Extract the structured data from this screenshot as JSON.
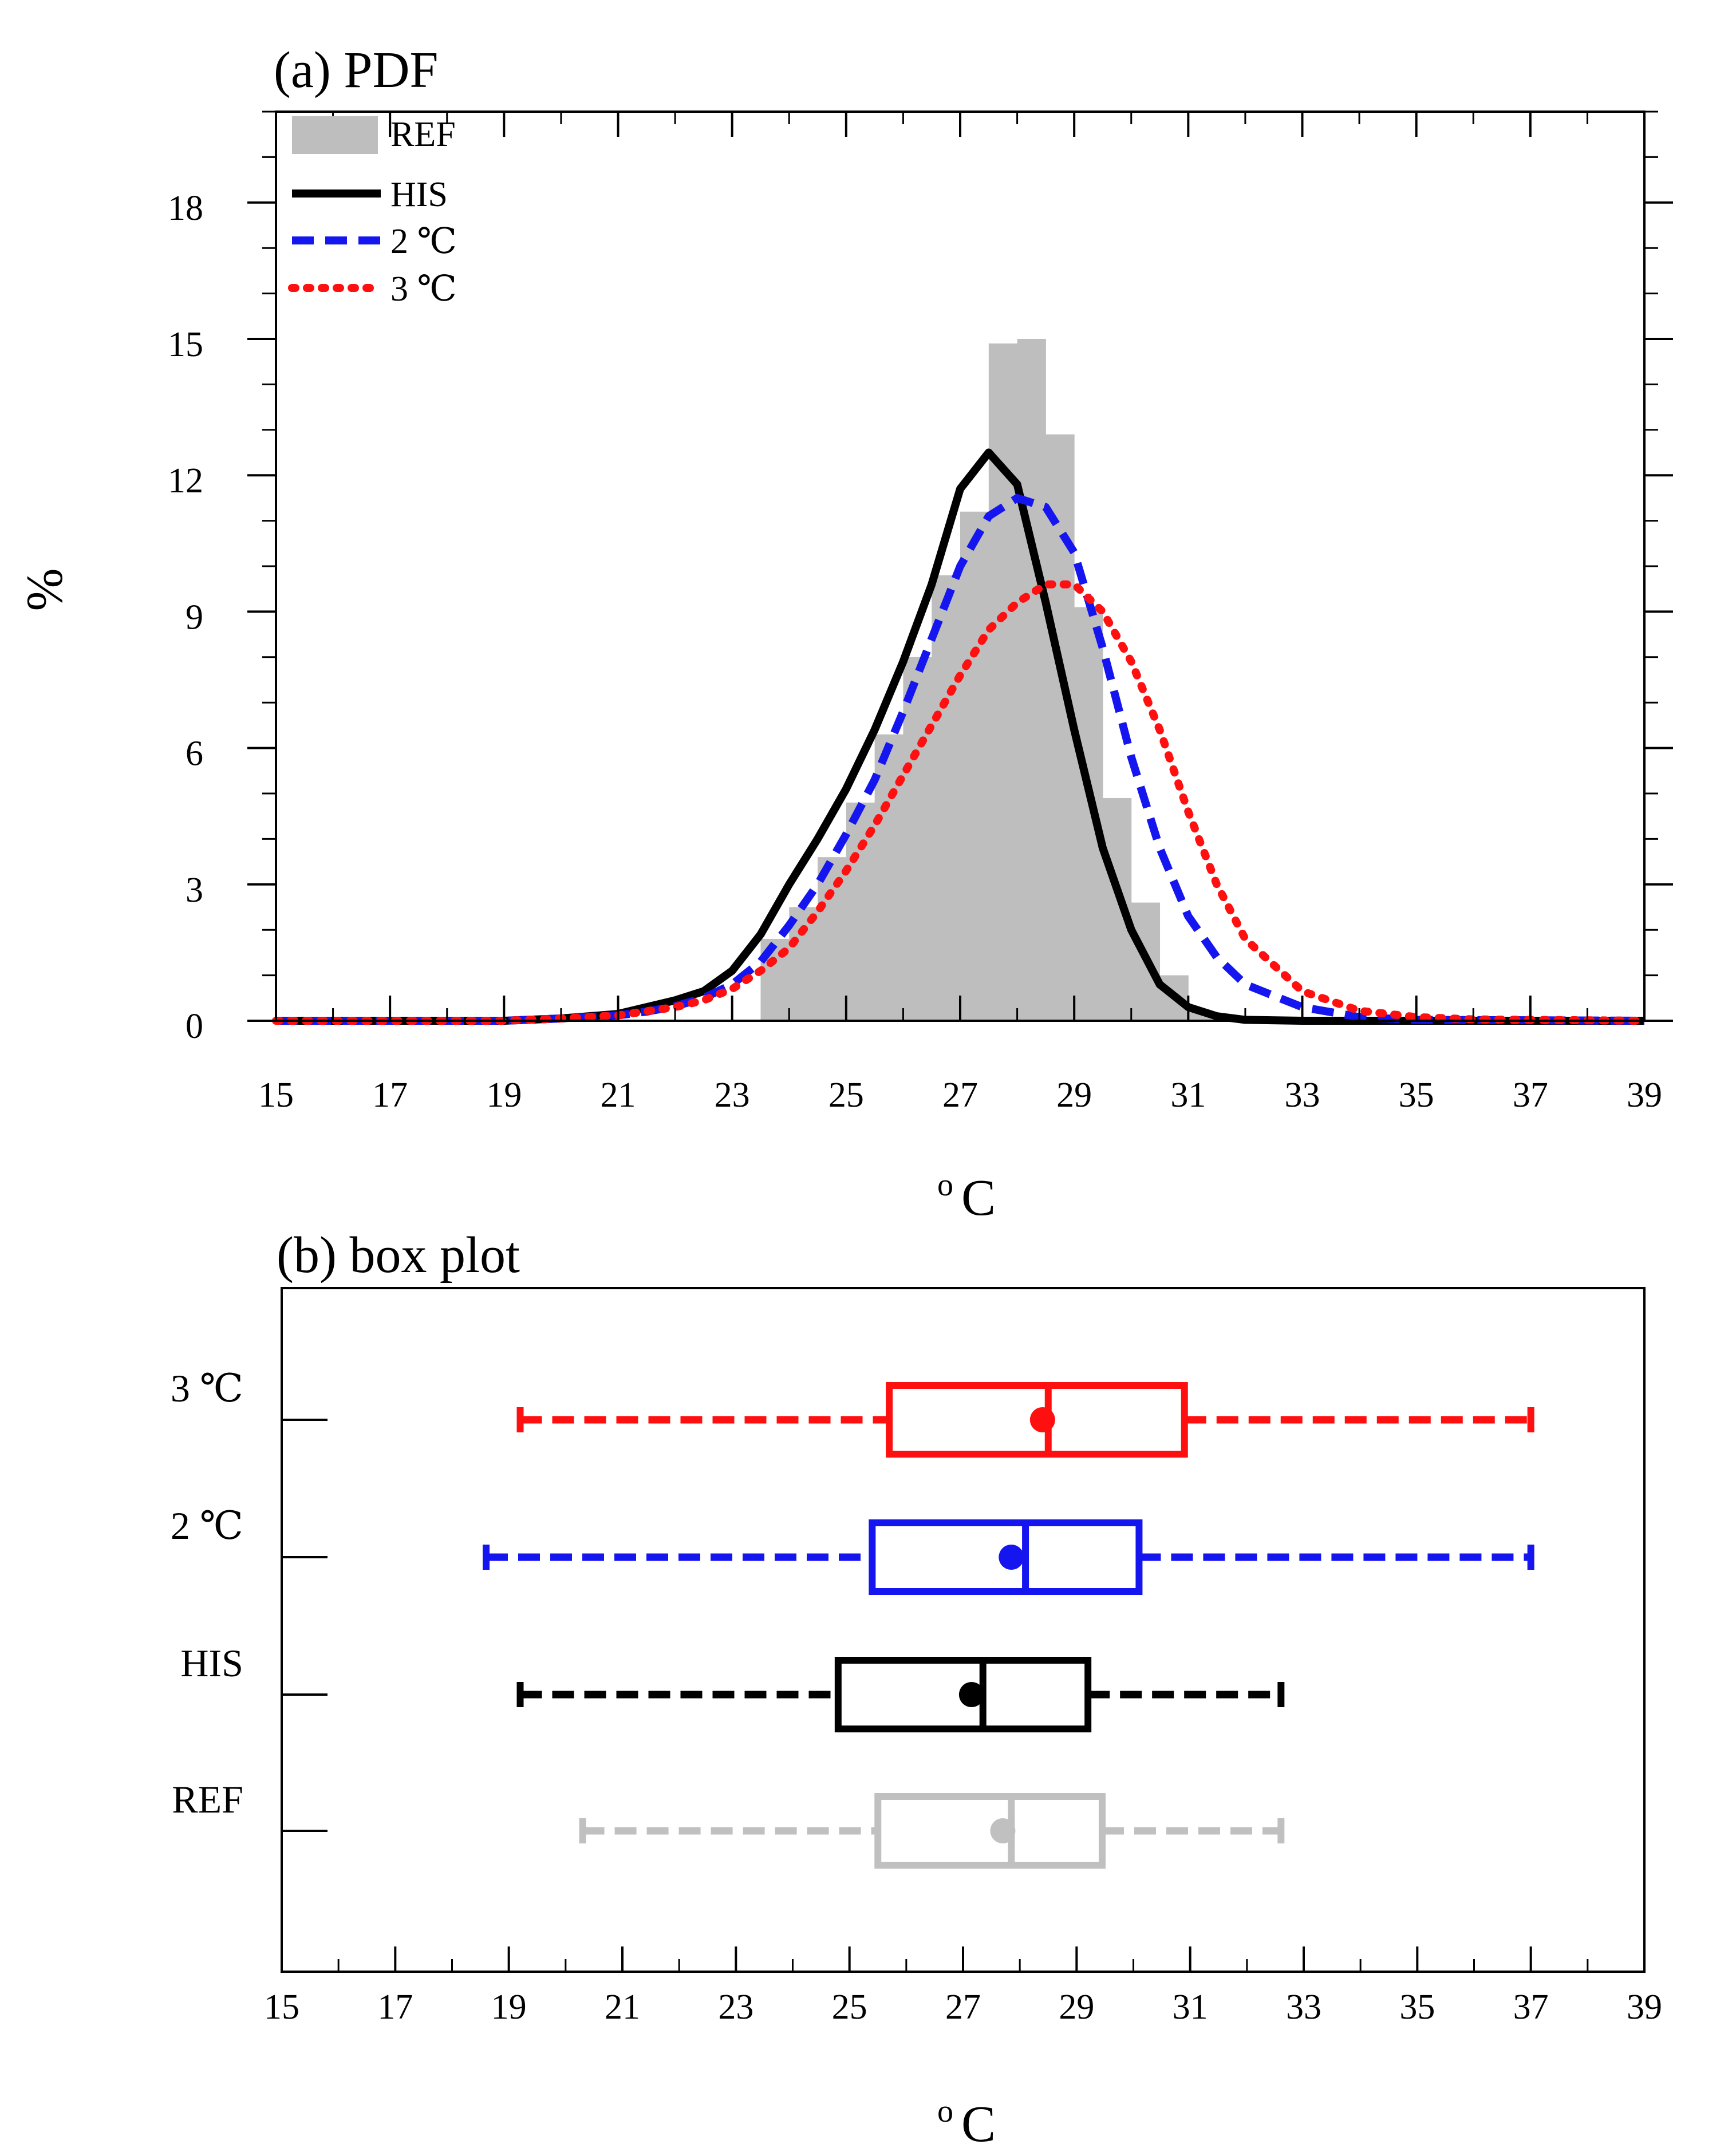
{
  "chart_data": [
    {
      "type": "histogram+line",
      "title": "(a) PDF",
      "xlabel": "° C",
      "xlabel_parts": [
        "o",
        "C"
      ],
      "ylabel": "%",
      "xlim": [
        15,
        39
      ],
      "ylim": [
        0,
        20
      ],
      "xticks": [
        "15",
        "17",
        "19",
        "21",
        "23",
        "25",
        "27",
        "29",
        "31",
        "33",
        "35",
        "37",
        "39"
      ],
      "yticks": [
        "0",
        "3",
        "6",
        "9",
        "12",
        "15",
        "18"
      ],
      "legend": [
        {
          "name": "REF",
          "style": "gray bars"
        },
        {
          "name": "HIS",
          "style": "black solid"
        },
        {
          "name": "2 ℃",
          "style": "blue dashed"
        },
        {
          "name": "3 ℃",
          "style": "red dotted"
        }
      ],
      "histogram": {
        "name": "REF",
        "bin_width": 0.5,
        "bin_starts": [
          23.5,
          24,
          24.5,
          25,
          25.5,
          26,
          26.5,
          27,
          27.5,
          28,
          28.5,
          29,
          29.5,
          30,
          30.5,
          31,
          31.5
        ],
        "values": [
          1.8,
          2.5,
          3.6,
          4.8,
          6.3,
          8.0,
          9.8,
          11.2,
          14.9,
          15.0,
          12.9,
          9.1,
          4.9,
          2.6,
          1.0,
          0.2,
          0.05
        ]
      },
      "series": [
        {
          "name": "HIS",
          "color": "#000000",
          "x": [
            15,
            17,
            19,
            20,
            21,
            21.5,
            22,
            22.5,
            23,
            23.5,
            24,
            24.5,
            25,
            25.5,
            26,
            26.5,
            27,
            27.5,
            28,
            28.5,
            29,
            29.5,
            30,
            30.5,
            31,
            31.5,
            32,
            33,
            35,
            39
          ],
          "y": [
            0,
            0,
            0,
            0.05,
            0.15,
            0.3,
            0.45,
            0.65,
            1.1,
            1.9,
            3.0,
            4.0,
            5.1,
            6.4,
            7.9,
            9.6,
            11.7,
            12.5,
            11.8,
            9.2,
            6.4,
            3.8,
            2.0,
            0.8,
            0.3,
            0.1,
            0.02,
            0,
            0,
            0
          ]
        },
        {
          "name": "2 ℃",
          "color": "#1515f0",
          "x": [
            15,
            17,
            19,
            20,
            21,
            21.5,
            22,
            22.5,
            23,
            23.5,
            24,
            24.5,
            25,
            25.5,
            26,
            26.5,
            27,
            27.5,
            28,
            28.5,
            29,
            29.5,
            30,
            30.5,
            31,
            31.5,
            32,
            33,
            34,
            35,
            39
          ],
          "y": [
            0,
            0,
            0,
            0.05,
            0.12,
            0.2,
            0.32,
            0.5,
            0.8,
            1.3,
            2.1,
            3.0,
            4.1,
            5.3,
            6.8,
            8.4,
            10.0,
            11.1,
            11.5,
            11.3,
            10.3,
            8.2,
            5.8,
            3.8,
            2.3,
            1.4,
            0.8,
            0.3,
            0.08,
            0.02,
            0
          ]
        },
        {
          "name": "3 ℃",
          "color": "#ff1010",
          "x": [
            15,
            17,
            19,
            20,
            21,
            22,
            22.5,
            23,
            23.5,
            24,
            24.5,
            25,
            25.5,
            26,
            26.5,
            27,
            27.5,
            28,
            28.5,
            29,
            29.5,
            30,
            30.5,
            31,
            31.5,
            32,
            33,
            34,
            35,
            36,
            39
          ],
          "y": [
            0,
            0,
            0,
            0.05,
            0.12,
            0.3,
            0.45,
            0.7,
            1.1,
            1.6,
            2.4,
            3.3,
            4.3,
            5.4,
            6.5,
            7.6,
            8.6,
            9.2,
            9.6,
            9.6,
            9.0,
            7.9,
            6.4,
            4.6,
            3.0,
            1.8,
            0.65,
            0.22,
            0.08,
            0.03,
            0
          ]
        }
      ]
    },
    {
      "type": "box",
      "title": "(b) box plot",
      "xlabel": "° C",
      "xlabel_parts": [
        "o",
        "C"
      ],
      "xlim": [
        15,
        39
      ],
      "xticks": [
        "15",
        "17",
        "19",
        "21",
        "23",
        "25",
        "27",
        "29",
        "31",
        "33",
        "35",
        "37",
        "39"
      ],
      "categories": [
        "3 ℃",
        "2 ℃",
        "HIS",
        "REF"
      ],
      "boxes": [
        {
          "name": "3 ℃",
          "color": "#ff1010",
          "min": 19.2,
          "q1": 25.7,
          "median": 28.5,
          "q3": 30.9,
          "max": 37.0,
          "mean": 28.4
        },
        {
          "name": "2 ℃",
          "color": "#1515f0",
          "min": 18.6,
          "q1": 25.4,
          "median": 28.1,
          "q3": 30.1,
          "max": 37.0,
          "mean": 27.85
        },
        {
          "name": "HIS",
          "color": "#000000",
          "min": 19.2,
          "q1": 24.8,
          "median": 27.35,
          "q3": 29.2,
          "max": 32.6,
          "mean": 27.15
        },
        {
          "name": "REF",
          "color": "#c0c0c0",
          "min": 20.3,
          "q1": 25.5,
          "median": 27.85,
          "q3": 29.45,
          "max": 32.6,
          "mean": 27.7
        }
      ]
    }
  ]
}
